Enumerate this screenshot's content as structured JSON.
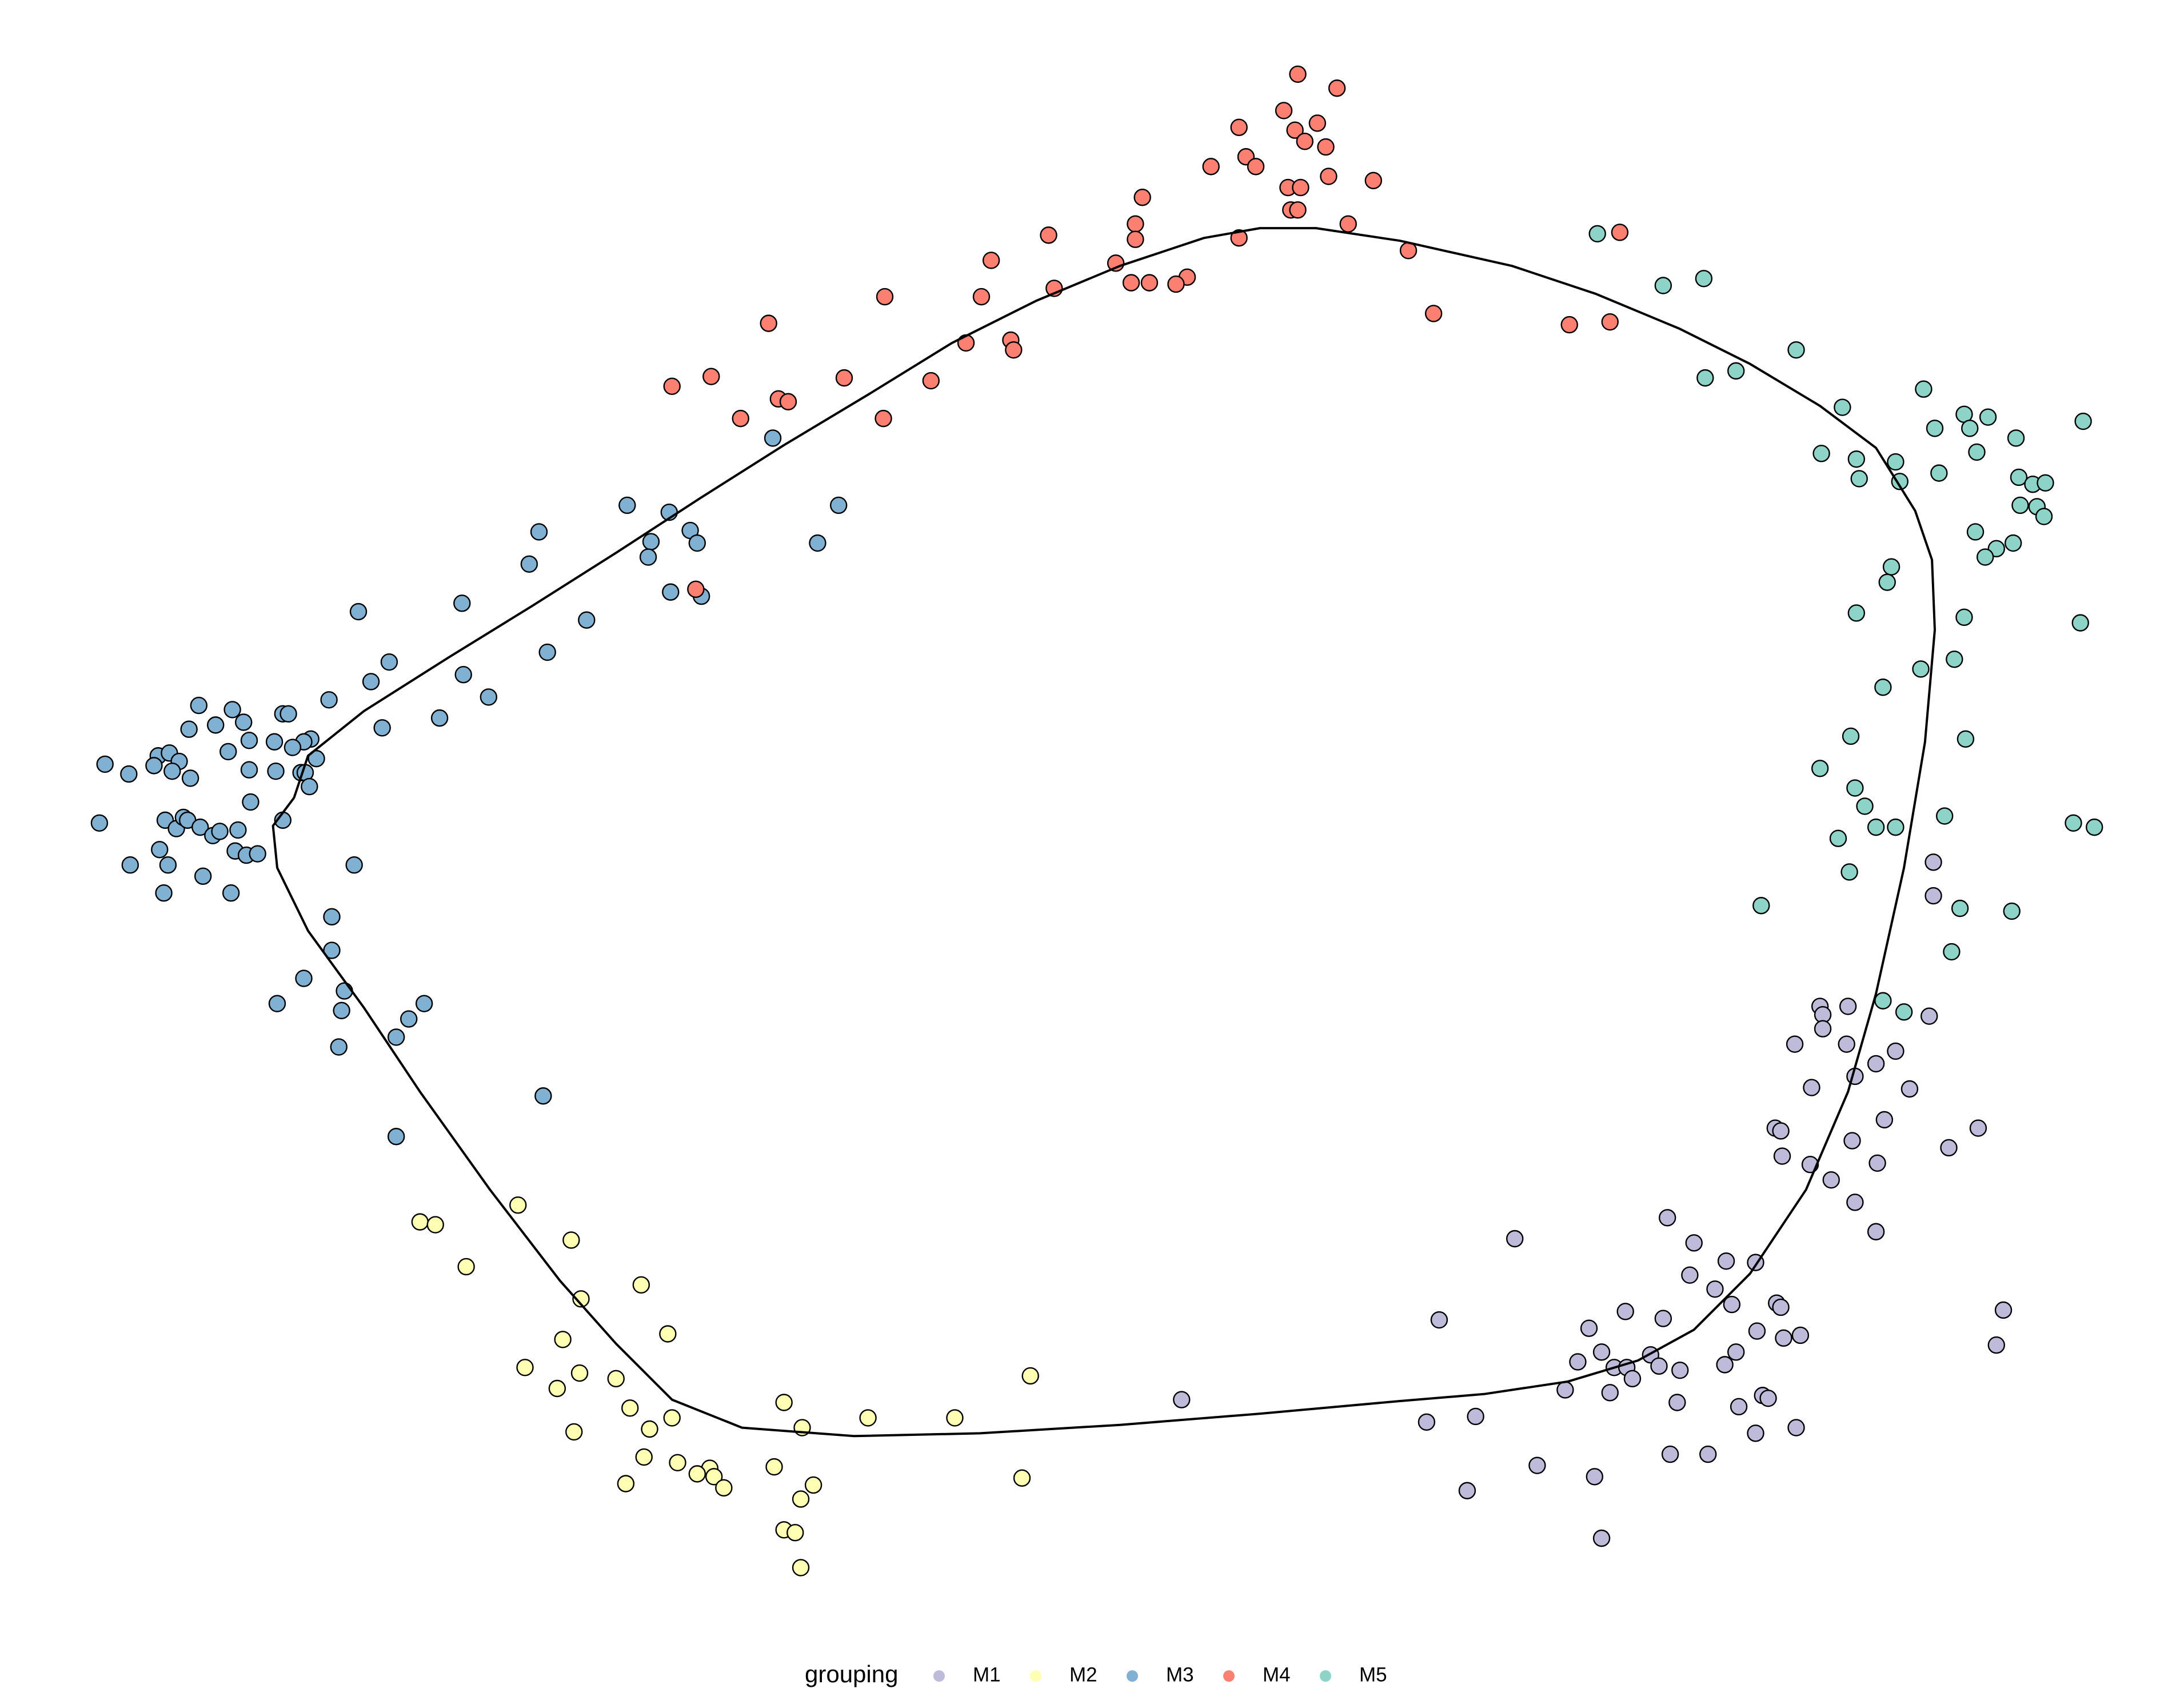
{
  "chart_data": {
    "type": "scatter",
    "legend_title": "grouping",
    "legend_position": "bottom",
    "xlim": [
      0,
      1560
    ],
    "ylim": [
      1206,
      0
    ],
    "curve": {
      "color": "#000000",
      "x": [
        210,
        195,
        198,
        220,
        260,
        300,
        350,
        400,
        440,
        480,
        530,
        610,
        700,
        800,
        900,
        1000,
        1060,
        1120,
        1170,
        1210,
        1250,
        1290,
        1320,
        1340,
        1360,
        1375,
        1382,
        1380,
        1368,
        1340,
        1300,
        1250,
        1200,
        1140,
        1080,
        1000,
        940,
        900,
        860,
        800,
        740,
        680,
        620,
        560,
        500,
        440,
        380,
        320,
        260,
        220,
        210
      ],
      "y": [
        570,
        590,
        620,
        665,
        720,
        780,
        850,
        915,
        960,
        1000,
        1020,
        1026,
        1024,
        1018,
        1010,
        1001,
        996,
        987,
        972,
        950,
        910,
        850,
        780,
        710,
        620,
        530,
        450,
        400,
        365,
        320,
        290,
        260,
        235,
        210,
        190,
        172,
        163,
        163,
        170,
        190,
        215,
        245,
        282,
        318,
        356,
        395,
        433,
        470,
        508,
        540,
        570
      ]
    },
    "series": [
      {
        "name": "M1",
        "color": "#bebada",
        "x": [
          1381,
          1381,
          1300,
          1320,
          1302,
          1378,
          1302,
          1282,
          1319,
          1354,
          1340,
          1325,
          1364,
          1294,
          1346,
          1268,
          1272,
          1413,
          1323,
          1392,
          1273,
          1293,
          1341,
          1308,
          1325,
          1340,
          1191,
          1210,
          1082,
          1233,
          1254,
          1207,
          1225,
          1237,
          1269,
          1272,
          1161,
          1188,
          1028,
          1135,
          1255,
          1274,
          1286,
          1431,
          1426,
          1144,
          1179,
          1240,
          1127,
          1153,
          1162,
          1185,
          1200,
          1232,
          1166,
          1118,
          1150,
          1259,
          1263,
          1198,
          1242,
          844,
          1019,
          1054,
          1254,
          1283,
          1193,
          1220,
          1098,
          1139,
          1048,
          1144
        ],
        "y": [
          616,
          640,
          719,
          719,
          725,
          726,
          735,
          746,
          746,
          751,
          760,
          769,
          778,
          777,
          800,
          806,
          808,
          806,
          815,
          820,
          826,
          832,
          831,
          843,
          859,
          880,
          870,
          888,
          885,
          901,
          902,
          911,
          921,
          932,
          931,
          934,
          937,
          942,
          943,
          949,
          951,
          956,
          954,
          936,
          961,
          966,
          968,
          966,
          973,
          977,
          977,
          976,
          979,
          975,
          985,
          993,
          995,
          997,
          999,
          1002,
          1005,
          1000,
          1016,
          1012,
          1024,
          1020,
          1039,
          1039,
          1047,
          1055,
          1065,
          1099
        ]
      },
      {
        "name": "M2",
        "color": "#ffffb3",
        "x": [
          370,
          300,
          311,
          408,
          333,
          458,
          415,
          477,
          402,
          375,
          414,
          440,
          398,
          736,
          560,
          450,
          480,
          620,
          682,
          464,
          410,
          573,
          460,
          484,
          553,
          507,
          498,
          510,
          447,
          730,
          581,
          572,
          517,
          560,
          568,
          572
        ],
        "y": [
          861,
          873,
          875,
          886,
          905,
          918,
          928,
          953,
          957,
          977,
          981,
          985,
          992,
          983,
          1002,
          1006,
          1013,
          1013,
          1013,
          1021,
          1023,
          1020,
          1041,
          1045,
          1048,
          1049,
          1053,
          1055,
          1060,
          1056,
          1061,
          1071,
          1063,
          1093,
          1095,
          1120
        ]
      },
      {
        "name": "M3",
        "color": "#80b1d3",
        "x": [
          552,
          448,
          478,
          599,
          385,
          493,
          465,
          498,
          584,
          463,
          378,
          479,
          501,
          256,
          330,
          419,
          391,
          278,
          331,
          265,
          349,
          235,
          142,
          166,
          202,
          206,
          314,
          135,
          154,
          174,
          273,
          222,
          217,
          196,
          178,
          209,
          163,
          113,
          121,
          226,
          75,
          110,
          128,
          92,
          123,
          136,
          178,
          197,
          215,
          218,
          221,
          179,
          71,
          118,
          126,
          131,
          134,
          143,
          152,
          157,
          170,
          202,
          114,
          168,
          176,
          184,
          93,
          120,
          253,
          145,
          117,
          165,
          237,
          237,
          217,
          198,
          246,
          244,
          303,
          292,
          283,
          242,
          388,
          283
        ],
        "y": [
          313,
          361,
          366,
          361,
          380,
          379,
          387,
          388,
          388,
          398,
          403,
          423,
          426,
          437,
          431,
          443,
          466,
          473,
          482,
          487,
          498,
          500,
          504,
          507,
          510,
          510,
          513,
          521,
          518,
          516,
          520,
          528,
          530,
          530,
          529,
          534,
          537,
          540,
          538,
          542,
          546,
          547,
          544,
          553,
          551,
          556,
          550,
          551,
          552,
          552,
          562,
          573,
          588,
          586,
          592,
          584,
          586,
          591,
          597,
          594,
          593,
          586,
          607,
          608,
          611,
          610,
          618,
          618,
          618,
          626,
          638,
          638,
          655,
          679,
          699,
          717,
          708,
          722,
          717,
          728,
          741,
          748,
          783,
          812
        ]
      },
      {
        "name": "M4",
        "color": "#fb8072",
        "x": [
          927,
          955,
          917,
          885,
          941,
          925,
          932,
          947,
          890,
          865,
          897,
          949,
          981,
          920,
          929,
          816,
          922,
          927,
          963,
          811,
          749,
          811,
          885,
          1006,
          708,
          797,
          848,
          840,
          808,
          821,
          753,
          632,
          701,
          1024,
          1121,
          1150,
          549,
          722,
          724,
          690,
          480,
          508,
          603,
          665,
          556,
          563,
          529,
          631,
          1157,
          497
        ],
        "y": [
          53,
          63,
          79,
          91,
          88,
          93,
          101,
          105,
          112,
          119,
          119,
          126,
          129,
          134,
          134,
          141,
          150,
          150,
          160,
          160,
          168,
          171,
          170,
          179,
          186,
          188,
          198,
          203,
          202,
          202,
          206,
          212,
          212,
          224,
          232,
          230,
          231,
          243,
          250,
          245,
          276,
          269,
          270,
          272,
          285,
          287,
          299,
          299,
          166,
          421
        ]
      },
      {
        "name": "M5",
        "color": "#8dd3c7",
        "x": [
          1141,
          1188,
          1217,
          1283,
          1218,
          1240,
          1316,
          1374,
          1403,
          1420,
          1407,
          1382,
          1488,
          1440,
          1301,
          1326,
          1354,
          1412,
          1328,
          1357,
          1385,
          1442,
          1452,
          1461,
          1443,
          1455,
          1460,
          1411,
          1438,
          1426,
          1418,
          1351,
          1348,
          1326,
          1403,
          1486,
          1372,
          1396,
          1345,
          1322,
          1404,
          1300,
          1325,
          1332,
          1389,
          1340,
          1354,
          1313,
          1481,
          1496,
          1321,
          1258,
          1400,
          1437,
          1394,
          1345,
          1360
        ],
        "y": [
          167,
          204,
          199,
          250,
          270,
          265,
          291,
          278,
          296,
          298,
          306,
          306,
          301,
          313,
          324,
          328,
          330,
          323,
          342,
          344,
          338,
          341,
          346,
          345,
          361,
          362,
          369,
          380,
          388,
          392,
          398,
          405,
          416,
          438,
          441,
          445,
          478,
          471,
          491,
          526,
          528,
          549,
          563,
          576,
          583,
          591,
          591,
          599,
          588,
          591,
          623,
          647,
          649,
          651,
          680,
          715,
          723
        ]
      }
    ]
  }
}
